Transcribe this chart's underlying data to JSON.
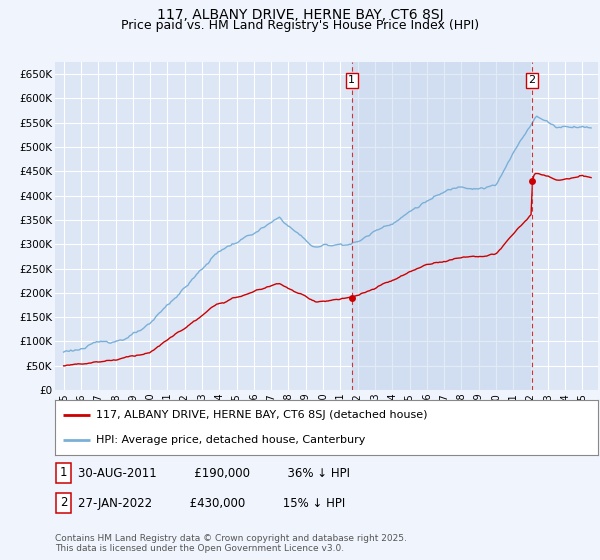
{
  "title": "117, ALBANY DRIVE, HERNE BAY, CT6 8SJ",
  "subtitle": "Price paid vs. HM Land Registry's House Price Index (HPI)",
  "title_fontsize": 10,
  "subtitle_fontsize": 9,
  "ylabel_ticks": [
    "£0",
    "£50K",
    "£100K",
    "£150K",
    "£200K",
    "£250K",
    "£300K",
    "£350K",
    "£400K",
    "£450K",
    "£500K",
    "£550K",
    "£600K",
    "£650K"
  ],
  "ytick_values": [
    0,
    50000,
    100000,
    150000,
    200000,
    250000,
    300000,
    350000,
    400000,
    450000,
    500000,
    550000,
    600000,
    650000
  ],
  "ylim": [
    0,
    675000
  ],
  "hpi_color": "#7ab0d8",
  "price_color": "#cc0000",
  "marker_color": "#cc0000",
  "vline_color": "#cc3333",
  "background_color": "#f0f4fc",
  "plot_bg_color": "#dce6f5",
  "shade_color": "#c8d8ee",
  "grid_color": "#ffffff",
  "sale1_x": 2011.66,
  "sale1_y": 190000,
  "sale2_x": 2022.08,
  "sale2_y": 430000,
  "legend_line1": "117, ALBANY DRIVE, HERNE BAY, CT6 8SJ (detached house)",
  "legend_line2": "HPI: Average price, detached house, Canterbury",
  "note1_date": "30-AUG-2011",
  "note1_price": "£190,000",
  "note1_hpi": "36% ↓ HPI",
  "note2_date": "27-JAN-2022",
  "note2_price": "£430,000",
  "note2_hpi": "15% ↓ HPI",
  "footnote": "Contains HM Land Registry data © Crown copyright and database right 2025.\nThis data is licensed under the Open Government Licence v3.0.",
  "xlabel_years": [
    1995,
    1996,
    1997,
    1998,
    1999,
    2000,
    2001,
    2002,
    2003,
    2004,
    2005,
    2006,
    2007,
    2008,
    2009,
    2010,
    2011,
    2012,
    2013,
    2014,
    2015,
    2016,
    2017,
    2018,
    2019,
    2020,
    2021,
    2022,
    2023,
    2024,
    2025
  ],
  "xlim_left": 1994.5,
  "xlim_right": 2025.9
}
